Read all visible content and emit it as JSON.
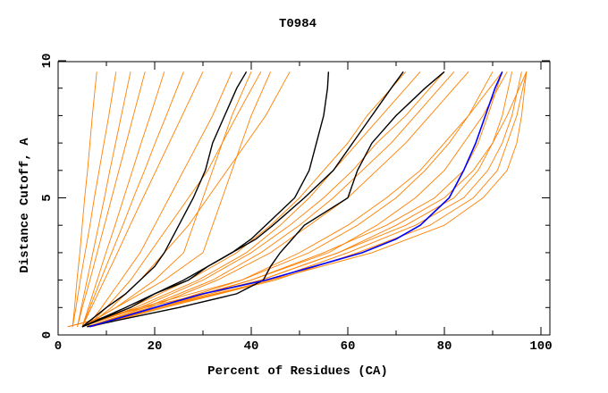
{
  "chart_data": {
    "type": "line",
    "title": "T0984",
    "xlabel": "Percent of Residues (CA)",
    "ylabel": "Distance Cutoff, A",
    "xlim": [
      0,
      101.85
    ],
    "ylim": [
      0,
      10
    ],
    "x_ticks": [
      0,
      20,
      40,
      60,
      80,
      100
    ],
    "y_ticks": [
      0,
      5,
      10
    ],
    "x_minor_step": 10,
    "y_minor_step": 1,
    "grid": false,
    "colors": {
      "other": "#ff8000",
      "highlight": "#000000",
      "best": "#0000ff"
    },
    "orange_y_levels": [
      0.3,
      1,
      2,
      3,
      4,
      5,
      6,
      7,
      8,
      9.6
    ],
    "orange_series": [
      [
        3,
        3.4,
        3.9,
        4.5,
        5,
        5.5,
        6.1,
        6.6,
        7.1,
        8
      ],
      [
        3,
        3.7,
        4.6,
        5.6,
        6.6,
        7.5,
        8.5,
        9.5,
        10.5,
        12
      ],
      [
        4,
        4.8,
        6,
        7.2,
        8.4,
        9.6,
        10.7,
        11.9,
        13.1,
        15
      ],
      [
        4,
        5,
        6.6,
        8.1,
        9.6,
        11.1,
        12.6,
        14.1,
        15.6,
        18
      ],
      [
        5,
        6.3,
        8.1,
        9.9,
        11.8,
        13.6,
        15.4,
        17.2,
        19.1,
        22
      ],
      [
        5,
        6.6,
        8.8,
        11.1,
        13.4,
        15.6,
        17.9,
        20.1,
        22.4,
        26
      ],
      [
        5,
        6.9,
        9.6,
        12.3,
        14.9,
        17.6,
        20.3,
        23,
        25.7,
        30
      ],
      [
        6,
        9,
        13,
        17,
        20,
        23,
        26,
        29,
        32,
        36
      ],
      [
        6,
        10,
        15,
        19,
        23,
        27,
        31,
        34,
        37,
        42
      ],
      [
        6,
        11,
        17,
        22,
        27,
        31,
        35,
        39,
        43,
        48
      ],
      [
        5,
        12,
        20,
        26,
        28,
        30,
        32,
        34,
        36,
        40
      ],
      [
        5,
        12,
        22,
        30,
        32,
        34,
        36,
        38,
        40,
        44
      ],
      [
        5,
        15,
        27,
        37,
        44,
        50,
        55,
        60,
        64,
        72
      ],
      [
        5,
        16,
        29,
        39,
        46,
        52,
        57,
        62,
        67,
        75
      ],
      [
        5,
        17,
        30,
        40,
        48,
        55,
        61,
        66,
        72,
        80
      ],
      [
        6,
        18,
        32,
        42,
        50,
        57,
        63,
        69,
        74,
        82
      ],
      [
        6,
        19,
        33,
        44,
        52,
        60,
        66,
        72,
        77,
        85
      ],
      [
        6,
        20,
        40,
        55,
        68,
        78,
        84,
        87,
        89,
        92
      ],
      [
        6,
        21,
        42,
        58,
        72,
        82,
        87,
        90,
        92,
        94
      ],
      [
        6,
        22,
        44,
        60,
        74,
        84,
        89,
        92,
        94,
        96
      ],
      [
        7,
        22,
        45,
        62,
        77,
        86,
        91,
        93,
        95,
        97
      ],
      [
        6,
        21,
        40,
        56,
        66,
        74,
        80,
        84,
        88,
        93
      ],
      [
        6,
        20,
        38,
        52,
        62,
        70,
        76,
        81,
        85,
        90
      ],
      [
        2,
        18,
        42,
        58,
        70,
        80,
        86,
        90,
        93,
        97
      ],
      [
        2,
        17,
        38,
        50,
        60,
        68,
        75,
        80,
        85,
        92
      ],
      [
        6,
        21,
        44,
        65,
        80,
        88,
        93,
        95,
        96,
        97
      ]
    ],
    "highlight_y_levels": [
      0.3,
      1,
      1.5,
      2,
      2.5,
      3,
      3.5,
      4,
      5,
      6,
      7,
      8,
      9,
      9.6
    ],
    "black_series": [
      [
        5,
        10,
        14,
        17,
        20,
        22,
        23.5,
        25,
        28,
        30.5,
        32,
        34.5,
        37,
        39
      ],
      [
        5,
        15,
        20,
        27,
        31,
        36,
        40,
        43,
        49,
        52,
        53.5,
        55,
        55.8,
        56
      ],
      [
        5,
        14,
        20,
        26,
        31,
        36,
        41,
        44.5,
        51,
        57,
        61,
        65,
        69,
        71.5
      ],
      [
        6,
        25,
        37,
        42.5,
        44,
        46,
        48.5,
        51,
        60,
        62,
        65,
        70,
        76,
        80
      ]
    ],
    "blue_series": [
      6.5,
      20,
      30,
      43,
      53,
      63,
      70,
      75,
      81,
      84,
      86.5,
      88.5,
      90.5,
      92
    ]
  }
}
